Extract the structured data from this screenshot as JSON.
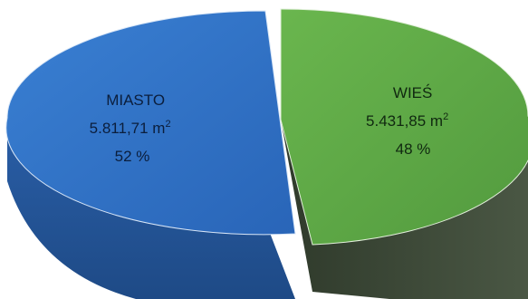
{
  "chart_data": {
    "type": "pie",
    "style": "3d-exploded",
    "slices": [
      {
        "name": "MIASTO",
        "area_text": "5.811,71 m",
        "area_unit_superscript": "2",
        "percent_text": "52 %",
        "value": 5811.71,
        "percent": 52,
        "color": "#2E6FC4",
        "side_color": "#234F8E"
      },
      {
        "name": "WIEŚ",
        "area_text": "5.431,85 m",
        "area_unit_superscript": "2",
        "percent_text": "48 %",
        "value": 5431.85,
        "percent": 48,
        "color": "#5FA845",
        "side_color": "#3E4A38"
      }
    ]
  }
}
